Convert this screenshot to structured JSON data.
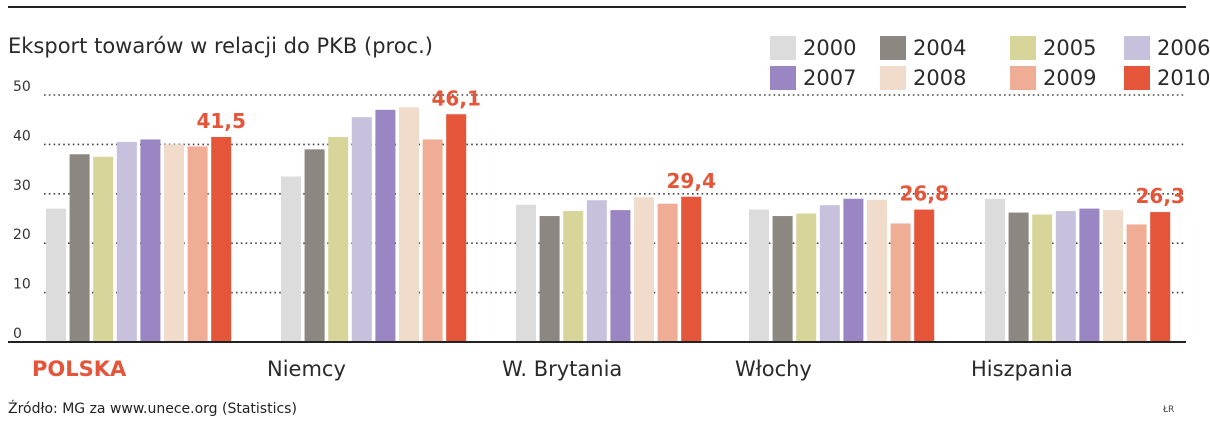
{
  "title": "Eksport towarów w relacji do PKB (proc.)",
  "source": "Źródło: MG za www.unece.org (Statistics)",
  "credit": "ŁR",
  "chart_data": {
    "type": "bar",
    "title": "Eksport towarów w relacji do PKB (proc.)",
    "xlabel": "",
    "ylabel": "",
    "ylim": [
      0,
      50
    ],
    "yticks": [
      "0",
      "10",
      "20",
      "30",
      "40",
      "50"
    ],
    "grid": true,
    "legend_position": "top-right",
    "categories": [
      "POLSKA",
      "Niemcy",
      "W. Brytania",
      "Włochy",
      "Hiszpania"
    ],
    "highlight_category": "POLSKA",
    "series": [
      {
        "name": "2000",
        "color": "#dcdcdc",
        "values": [
          27.0,
          33.5,
          27.8,
          26.8,
          29.0
        ]
      },
      {
        "name": "2004",
        "color": "#8c8780",
        "values": [
          38.0,
          39.0,
          25.5,
          25.5,
          26.2
        ]
      },
      {
        "name": "2005",
        "color": "#d8d59a",
        "values": [
          37.5,
          41.5,
          26.5,
          26.0,
          25.8
        ]
      },
      {
        "name": "2006",
        "color": "#c7c1de",
        "values": [
          40.5,
          45.5,
          28.7,
          27.7,
          26.5
        ]
      },
      {
        "name": "2007",
        "color": "#9a86c3",
        "values": [
          41.0,
          47.0,
          26.7,
          29.0,
          27.0
        ]
      },
      {
        "name": "2008",
        "color": "#f1dccc",
        "values": [
          40.0,
          47.5,
          29.3,
          28.8,
          26.7
        ]
      },
      {
        "name": "2009",
        "color": "#f0ad96",
        "values": [
          39.6,
          41.0,
          28.0,
          24.0,
          23.8
        ]
      },
      {
        "name": "2010",
        "color": "#e4553a",
        "values": [
          41.5,
          46.1,
          29.4,
          26.8,
          26.3
        ]
      }
    ],
    "data_labels": [
      "41,5",
      "46,1",
      "29,4",
      "26,8",
      "26,3"
    ],
    "data_label_color": "#e4553a"
  }
}
